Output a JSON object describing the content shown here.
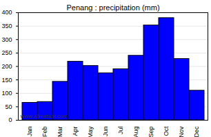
{
  "chart_data": {
    "type": "bar",
    "title": "Penang : precipitation (mm)",
    "categories": [
      "Jan",
      "Feb",
      "Mar",
      "Apr",
      "May",
      "Jun",
      "Jul",
      "Aug",
      "Sep",
      "Oct",
      "Nov",
      "Dec"
    ],
    "values": [
      65,
      68,
      143,
      218,
      202,
      175,
      190,
      240,
      353,
      380,
      228,
      110
    ],
    "color": "#0000ff",
    "ylim": [
      0,
      400
    ],
    "yticks": [
      0,
      50,
      100,
      150,
      200,
      250,
      300,
      350,
      400
    ],
    "grid": true,
    "annotations": [
      "www.allmetsat.com"
    ]
  }
}
